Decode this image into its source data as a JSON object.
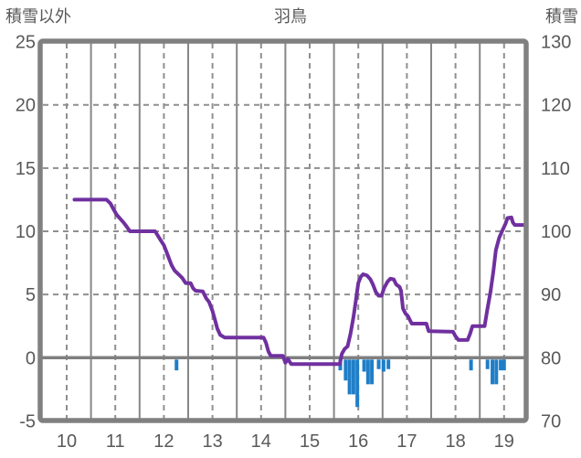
{
  "header": {
    "left_title": "積雪以外",
    "center_title": "羽鳥",
    "right_title": "積雪"
  },
  "chart_data": {
    "type": "line+bar",
    "title": "羽鳥",
    "left_axis": {
      "label": "積雪以外",
      "ticks": [
        25,
        20,
        15,
        10,
        5,
        0,
        -5
      ],
      "range": [
        -5,
        25
      ]
    },
    "right_axis": {
      "label": "積雪",
      "ticks": [
        130,
        120,
        110,
        100,
        90,
        80,
        70
      ],
      "range": [
        70,
        130
      ]
    },
    "x_axis": {
      "ticks": [
        10,
        11,
        12,
        13,
        14,
        15,
        16,
        17,
        18,
        19
      ],
      "range": [
        9.48,
        19.45
      ]
    },
    "grid": {
      "dashed_lines_at_hours": true,
      "solid_lines_at_half_hours": true,
      "dashed_horizontal_every": 5,
      "solid_zero_line": true
    },
    "colors": {
      "line": "#7030a0",
      "bar": "#1f7ec8",
      "grid_dashed": "#8f8f8f",
      "grid_solid": "#878787",
      "border": "#808080",
      "zero_line": "#7f7f7f",
      "text": "#595959",
      "background": "#ffffff"
    },
    "series": [
      {
        "name": "snow-other-line",
        "type": "line",
        "axis": "left",
        "points": [
          [
            10.16,
            12.5
          ],
          [
            10.82,
            12.5
          ],
          [
            10.9,
            12.2
          ],
          [
            10.97,
            11.7
          ],
          [
            11.03,
            11.3
          ],
          [
            11.1,
            11.0
          ],
          [
            11.17,
            10.7
          ],
          [
            11.23,
            10.4
          ],
          [
            11.3,
            10.0
          ],
          [
            11.82,
            10.0
          ],
          [
            11.9,
            9.5
          ],
          [
            11.95,
            9.2
          ],
          [
            12.0,
            8.9
          ],
          [
            12.05,
            8.4
          ],
          [
            12.1,
            7.9
          ],
          [
            12.16,
            7.3
          ],
          [
            12.22,
            6.9
          ],
          [
            12.3,
            6.6
          ],
          [
            12.38,
            6.3
          ],
          [
            12.45,
            5.9
          ],
          [
            12.55,
            5.9
          ],
          [
            12.6,
            5.5
          ],
          [
            12.65,
            5.3
          ],
          [
            12.8,
            5.25
          ],
          [
            12.87,
            4.7
          ],
          [
            12.93,
            4.4
          ],
          [
            13.0,
            3.7
          ],
          [
            13.05,
            3.0
          ],
          [
            13.1,
            2.3
          ],
          [
            13.16,
            1.8
          ],
          [
            13.25,
            1.6
          ],
          [
            14.05,
            1.6
          ],
          [
            14.1,
            1.2
          ],
          [
            14.15,
            0.5
          ],
          [
            14.2,
            0.15
          ],
          [
            14.45,
            0.15
          ],
          [
            14.5,
            -0.4
          ],
          [
            14.55,
            -0.1
          ],
          [
            14.62,
            -0.5
          ],
          [
            15.62,
            -0.5
          ],
          [
            15.66,
            0.3
          ],
          [
            15.72,
            0.7
          ],
          [
            15.78,
            0.9
          ],
          [
            15.84,
            1.9
          ],
          [
            15.9,
            3.2
          ],
          [
            15.95,
            4.5
          ],
          [
            16.0,
            5.9
          ],
          [
            16.05,
            6.4
          ],
          [
            16.1,
            6.6
          ],
          [
            16.18,
            6.5
          ],
          [
            16.25,
            6.2
          ],
          [
            16.3,
            5.8
          ],
          [
            16.36,
            5.2
          ],
          [
            16.42,
            4.9
          ],
          [
            16.48,
            4.9
          ],
          [
            16.53,
            5.5
          ],
          [
            16.6,
            6.0
          ],
          [
            16.66,
            6.25
          ],
          [
            16.73,
            6.2
          ],
          [
            16.78,
            5.8
          ],
          [
            16.85,
            5.6
          ],
          [
            16.88,
            5.3
          ],
          [
            16.92,
            3.9
          ],
          [
            16.97,
            3.5
          ],
          [
            17.02,
            3.3
          ],
          [
            17.1,
            2.7
          ],
          [
            17.4,
            2.7
          ],
          [
            17.45,
            2.1
          ],
          [
            17.95,
            2.05
          ],
          [
            18.0,
            1.7
          ],
          [
            18.06,
            1.4
          ],
          [
            18.25,
            1.4
          ],
          [
            18.3,
            1.9
          ],
          [
            18.35,
            2.5
          ],
          [
            18.6,
            2.5
          ],
          [
            18.65,
            3.7
          ],
          [
            18.72,
            5.2
          ],
          [
            18.78,
            6.85
          ],
          [
            18.83,
            8.5
          ],
          [
            18.9,
            9.5
          ],
          [
            18.97,
            10.1
          ],
          [
            19.03,
            10.6
          ],
          [
            19.07,
            11.05
          ],
          [
            19.15,
            11.1
          ],
          [
            19.18,
            10.7
          ],
          [
            19.22,
            10.5
          ],
          [
            19.45,
            10.5
          ]
        ]
      },
      {
        "name": "negative-bars",
        "type": "bar",
        "axis": "left",
        "points": [
          [
            12.26,
            -1.0
          ],
          [
            15.63,
            -1.0
          ],
          [
            15.74,
            -1.8
          ],
          [
            15.82,
            -2.9
          ],
          [
            15.9,
            -2.9
          ],
          [
            15.98,
            -3.9
          ],
          [
            16.12,
            -1.1
          ],
          [
            16.2,
            -2.1
          ],
          [
            16.28,
            -2.1
          ],
          [
            16.42,
            -0.9
          ],
          [
            16.52,
            -1.1
          ],
          [
            16.62,
            -0.9
          ],
          [
            18.32,
            -1.0
          ],
          [
            18.66,
            -0.9
          ],
          [
            18.76,
            -2.1
          ],
          [
            18.84,
            -2.1
          ],
          [
            18.93,
            -1.0
          ],
          [
            19.0,
            -1.0
          ]
        ]
      }
    ]
  }
}
